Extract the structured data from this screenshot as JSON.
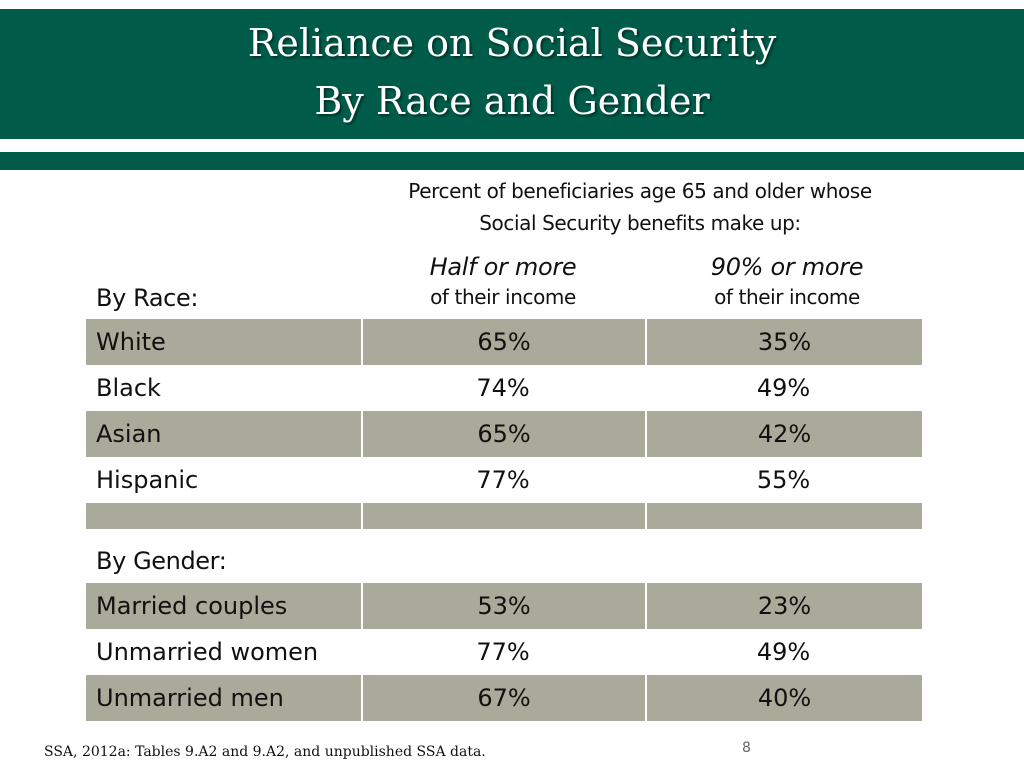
{
  "title": {
    "line1": "Reliance on Social Security",
    "line2": "By Race and Gender"
  },
  "subtitle": {
    "line1": "Percent of beneficiaries age 65 and older whose",
    "line2": "Social Security benefits make up:"
  },
  "columns": [
    {
      "main": "Half or more",
      "sub": "of their income"
    },
    {
      "main": "90% or more",
      "sub": "of their income"
    }
  ],
  "race": {
    "label": "By Race:",
    "rows": [
      {
        "name": "White",
        "half": "65%",
        "ninety": "35%"
      },
      {
        "name": "Black",
        "half": "74%",
        "ninety": "49%"
      },
      {
        "name": "Asian",
        "half": "65%",
        "ninety": "42%"
      },
      {
        "name": "Hispanic",
        "half": "77%",
        "ninety": "55%"
      }
    ]
  },
  "gender": {
    "label": "By Gender:",
    "rows": [
      {
        "name": "Married couples",
        "half": "53%",
        "ninety": "23%"
      },
      {
        "name": "Unmarried women",
        "half": "77%",
        "ninety": "49%"
      },
      {
        "name": "Unmarried men",
        "half": "67%",
        "ninety": "40%"
      }
    ]
  },
  "footer": {
    "source": "SSA, 2012a: Tables 9.A2 and 9.A2, and unpublished SSA data.",
    "page_number": "8"
  },
  "colors": {
    "banner": "#005c49",
    "row_shade": "#aaaa9a",
    "background": "#ffffff"
  }
}
